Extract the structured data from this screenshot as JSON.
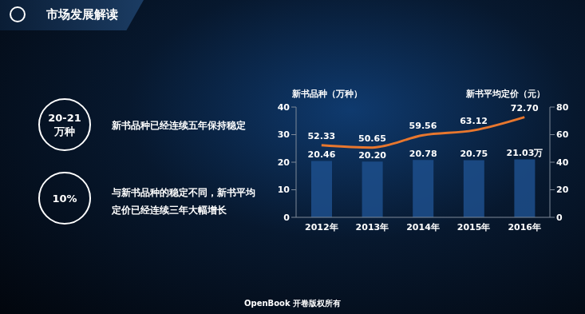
{
  "header": {
    "title": "市场发展解读"
  },
  "notes": [
    {
      "badge": "20-21 万种",
      "text": "新书品种已经连续五年保持稳定"
    },
    {
      "badge": "10%",
      "text": "与新书品种的稳定不同，新书平均定价已经连续三年大幅增长"
    }
  ],
  "footer": "OpenBook 开卷版权所有",
  "chart_data": {
    "type": "bar",
    "y_label": "新书品种（万种）",
    "y2_label": "新书平均定价（元）",
    "categories": [
      "2012年",
      "2013年",
      "2014年",
      "2015年",
      "2016年"
    ],
    "ylim": [
      0,
      40
    ],
    "yticks": [
      0,
      10,
      20,
      30,
      40
    ],
    "y2lim": [
      0,
      80
    ],
    "y2ticks": [
      0,
      20,
      40,
      60,
      80
    ],
    "grid": false,
    "data_labels": true,
    "series": [
      {
        "type": "bar",
        "color": "#1d4f8c",
        "values": [
          20.46,
          20.2,
          20.78,
          20.75,
          21.03
        ],
        "value_labels": [
          "20.46",
          "20.20",
          "20.78",
          "20.75",
          "21.03万"
        ]
      },
      {
        "type": "line",
        "axis": "y2",
        "color": "#e8772e",
        "marker": "none",
        "values": [
          52.33,
          50.65,
          59.56,
          63.12,
          72.7
        ],
        "value_labels": [
          "52.33",
          "50.65",
          "59.56",
          "63.12",
          "72.70"
        ]
      }
    ]
  }
}
